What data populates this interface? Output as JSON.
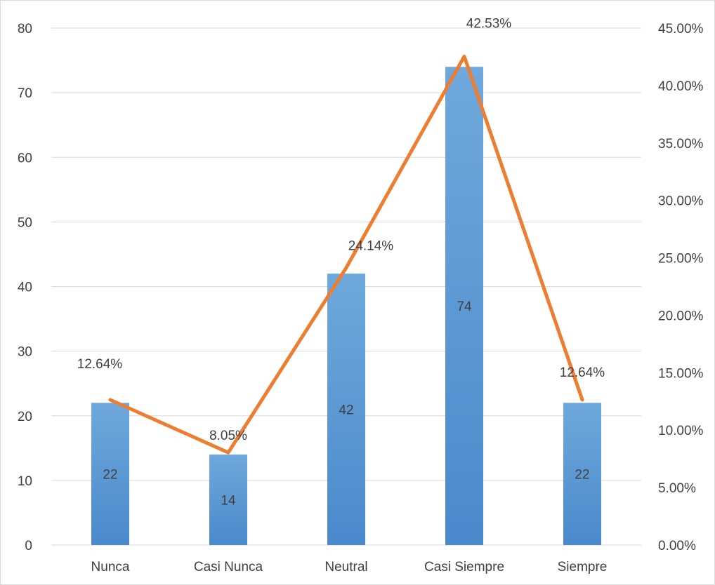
{
  "chart_data": {
    "type": "bar",
    "categories": [
      "Nunca",
      "Casi Nunca",
      "Neutral",
      "Casi Siempre",
      "Siempre"
    ],
    "series": [
      {
        "type": "bar",
        "axis": "left",
        "values": [
          22,
          14,
          42,
          74,
          22
        ],
        "labels": [
          "22",
          "14",
          "42",
          "74",
          "22"
        ]
      },
      {
        "type": "line",
        "axis": "right",
        "values": [
          12.64,
          8.05,
          24.14,
          42.53,
          12.64
        ],
        "labels": [
          "12.64%",
          "8.05%",
          "24.14%",
          "42.53%",
          "12.64%"
        ]
      }
    ],
    "y_left": {
      "min": 0,
      "max": 80,
      "step": 10,
      "ticks": [
        "0",
        "10",
        "20",
        "30",
        "40",
        "50",
        "60",
        "70",
        "80"
      ]
    },
    "y_right": {
      "min": 0,
      "max": 45,
      "step": 5,
      "ticks": [
        "0.00%",
        "5.00%",
        "10.00%",
        "15.00%",
        "20.00%",
        "25.00%",
        "30.00%",
        "35.00%",
        "40.00%",
        "45.00%"
      ]
    },
    "grid": true,
    "legend": "none",
    "title": "",
    "colors": {
      "bar_top": "#6fa8dc",
      "bar_bottom": "#4a89cc",
      "line": "#ed7d31",
      "grid": "#d9d9d9",
      "text": "#404040"
    }
  }
}
